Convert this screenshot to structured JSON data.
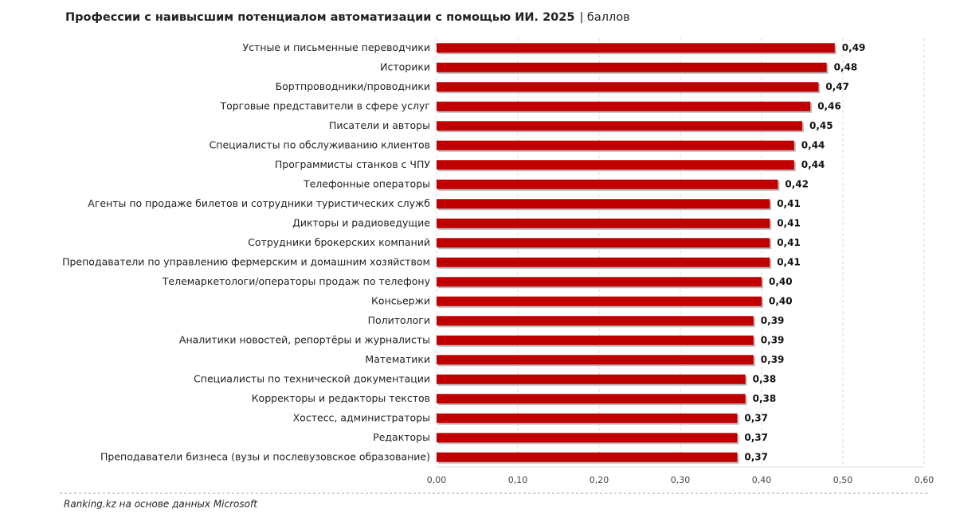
{
  "chart_data": {
    "type": "bar",
    "orientation": "horizontal",
    "title": "Профессии с наивысшим потенциалом автоматизации с помощью ИИ. 2025",
    "unit": "| баллов",
    "source": "Ranking.kz на основе данных Microsoft",
    "color": "#c00000",
    "grid": true,
    "categories": [
      "Устные и письменные переводчики",
      "Историки",
      "Бортпроводники/проводники",
      "Торговые представители в сфере услуг",
      "Писатели и авторы",
      "Специалисты по обслуживанию клиентов",
      "Программисты станков с ЧПУ",
      "Телефонные операторы",
      "Агенты по продаже билетов и сотрудники туристических служб",
      "Дикторы и радиоведущие",
      "Сотрудники брокерских компаний",
      "Преподаватели по управлению фермерским и домашним хозяйством",
      "Телемаркетологи/операторы продаж по телефону",
      "Консьержи",
      "Политологи",
      "Аналитики новостей, репортёры и журналисты",
      "Математики",
      "Специалисты по технической документации",
      "Корректоры и редакторы текстов",
      "Хостесс, администраторы",
      "Редакторы",
      "Преподаватели бизнеса (вузы и послевузовское образование)"
    ],
    "values": [
      0.49,
      0.48,
      0.47,
      0.46,
      0.45,
      0.44,
      0.44,
      0.42,
      0.41,
      0.41,
      0.41,
      0.41,
      0.4,
      0.4,
      0.39,
      0.39,
      0.39,
      0.38,
      0.38,
      0.37,
      0.37,
      0.37
    ],
    "value_labels": [
      "0,49",
      "0,48",
      "0,47",
      "0,46",
      "0,45",
      "0,44",
      "0,44",
      "0,42",
      "0,41",
      "0,41",
      "0,41",
      "0,41",
      "0,40",
      "0,40",
      "0,39",
      "0,39",
      "0,39",
      "0,38",
      "0,38",
      "0,37",
      "0,37",
      "0,37"
    ],
    "xlim": [
      0,
      0.6
    ],
    "xticks": [
      {
        "value": 0,
        "label": "0,00"
      },
      {
        "value": 0.1,
        "label": "0,10"
      },
      {
        "value": 0.2,
        "label": "0,20"
      },
      {
        "value": 0.3,
        "label": "0,30"
      },
      {
        "value": 0.4,
        "label": "0,40"
      },
      {
        "value": 0.5,
        "label": "0,50"
      },
      {
        "value": 0.6,
        "label": "0,60"
      }
    ]
  }
}
